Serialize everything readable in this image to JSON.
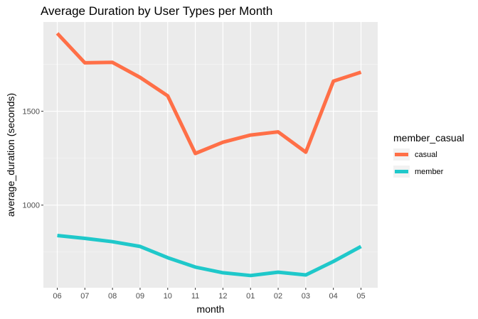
{
  "chart_data": {
    "type": "line",
    "title": "Average Duration by User Types per Month",
    "xlabel": "month",
    "ylabel": "average_duration (seconds)",
    "categories": [
      "06",
      "07",
      "08",
      "09",
      "10",
      "11",
      "12",
      "01",
      "02",
      "03",
      "04",
      "05"
    ],
    "y_ticks": [
      1000,
      1500
    ],
    "ylim": [
      560,
      1975
    ],
    "grid": true,
    "legend": {
      "title": "member_casual",
      "position": "right"
    },
    "series": [
      {
        "name": "casual",
        "color": "#F8766D",
        "line_color": "#FF6F47",
        "values": [
          1915,
          1758,
          1760,
          1680,
          1582,
          1275,
          1335,
          1373,
          1390,
          1282,
          1660,
          1708
        ]
      },
      {
        "name": "member",
        "color": "#00BFC4",
        "line_color": "#1FC8CA",
        "values": [
          838,
          823,
          805,
          780,
          720,
          670,
          640,
          625,
          643,
          628,
          700,
          780
        ]
      }
    ]
  }
}
